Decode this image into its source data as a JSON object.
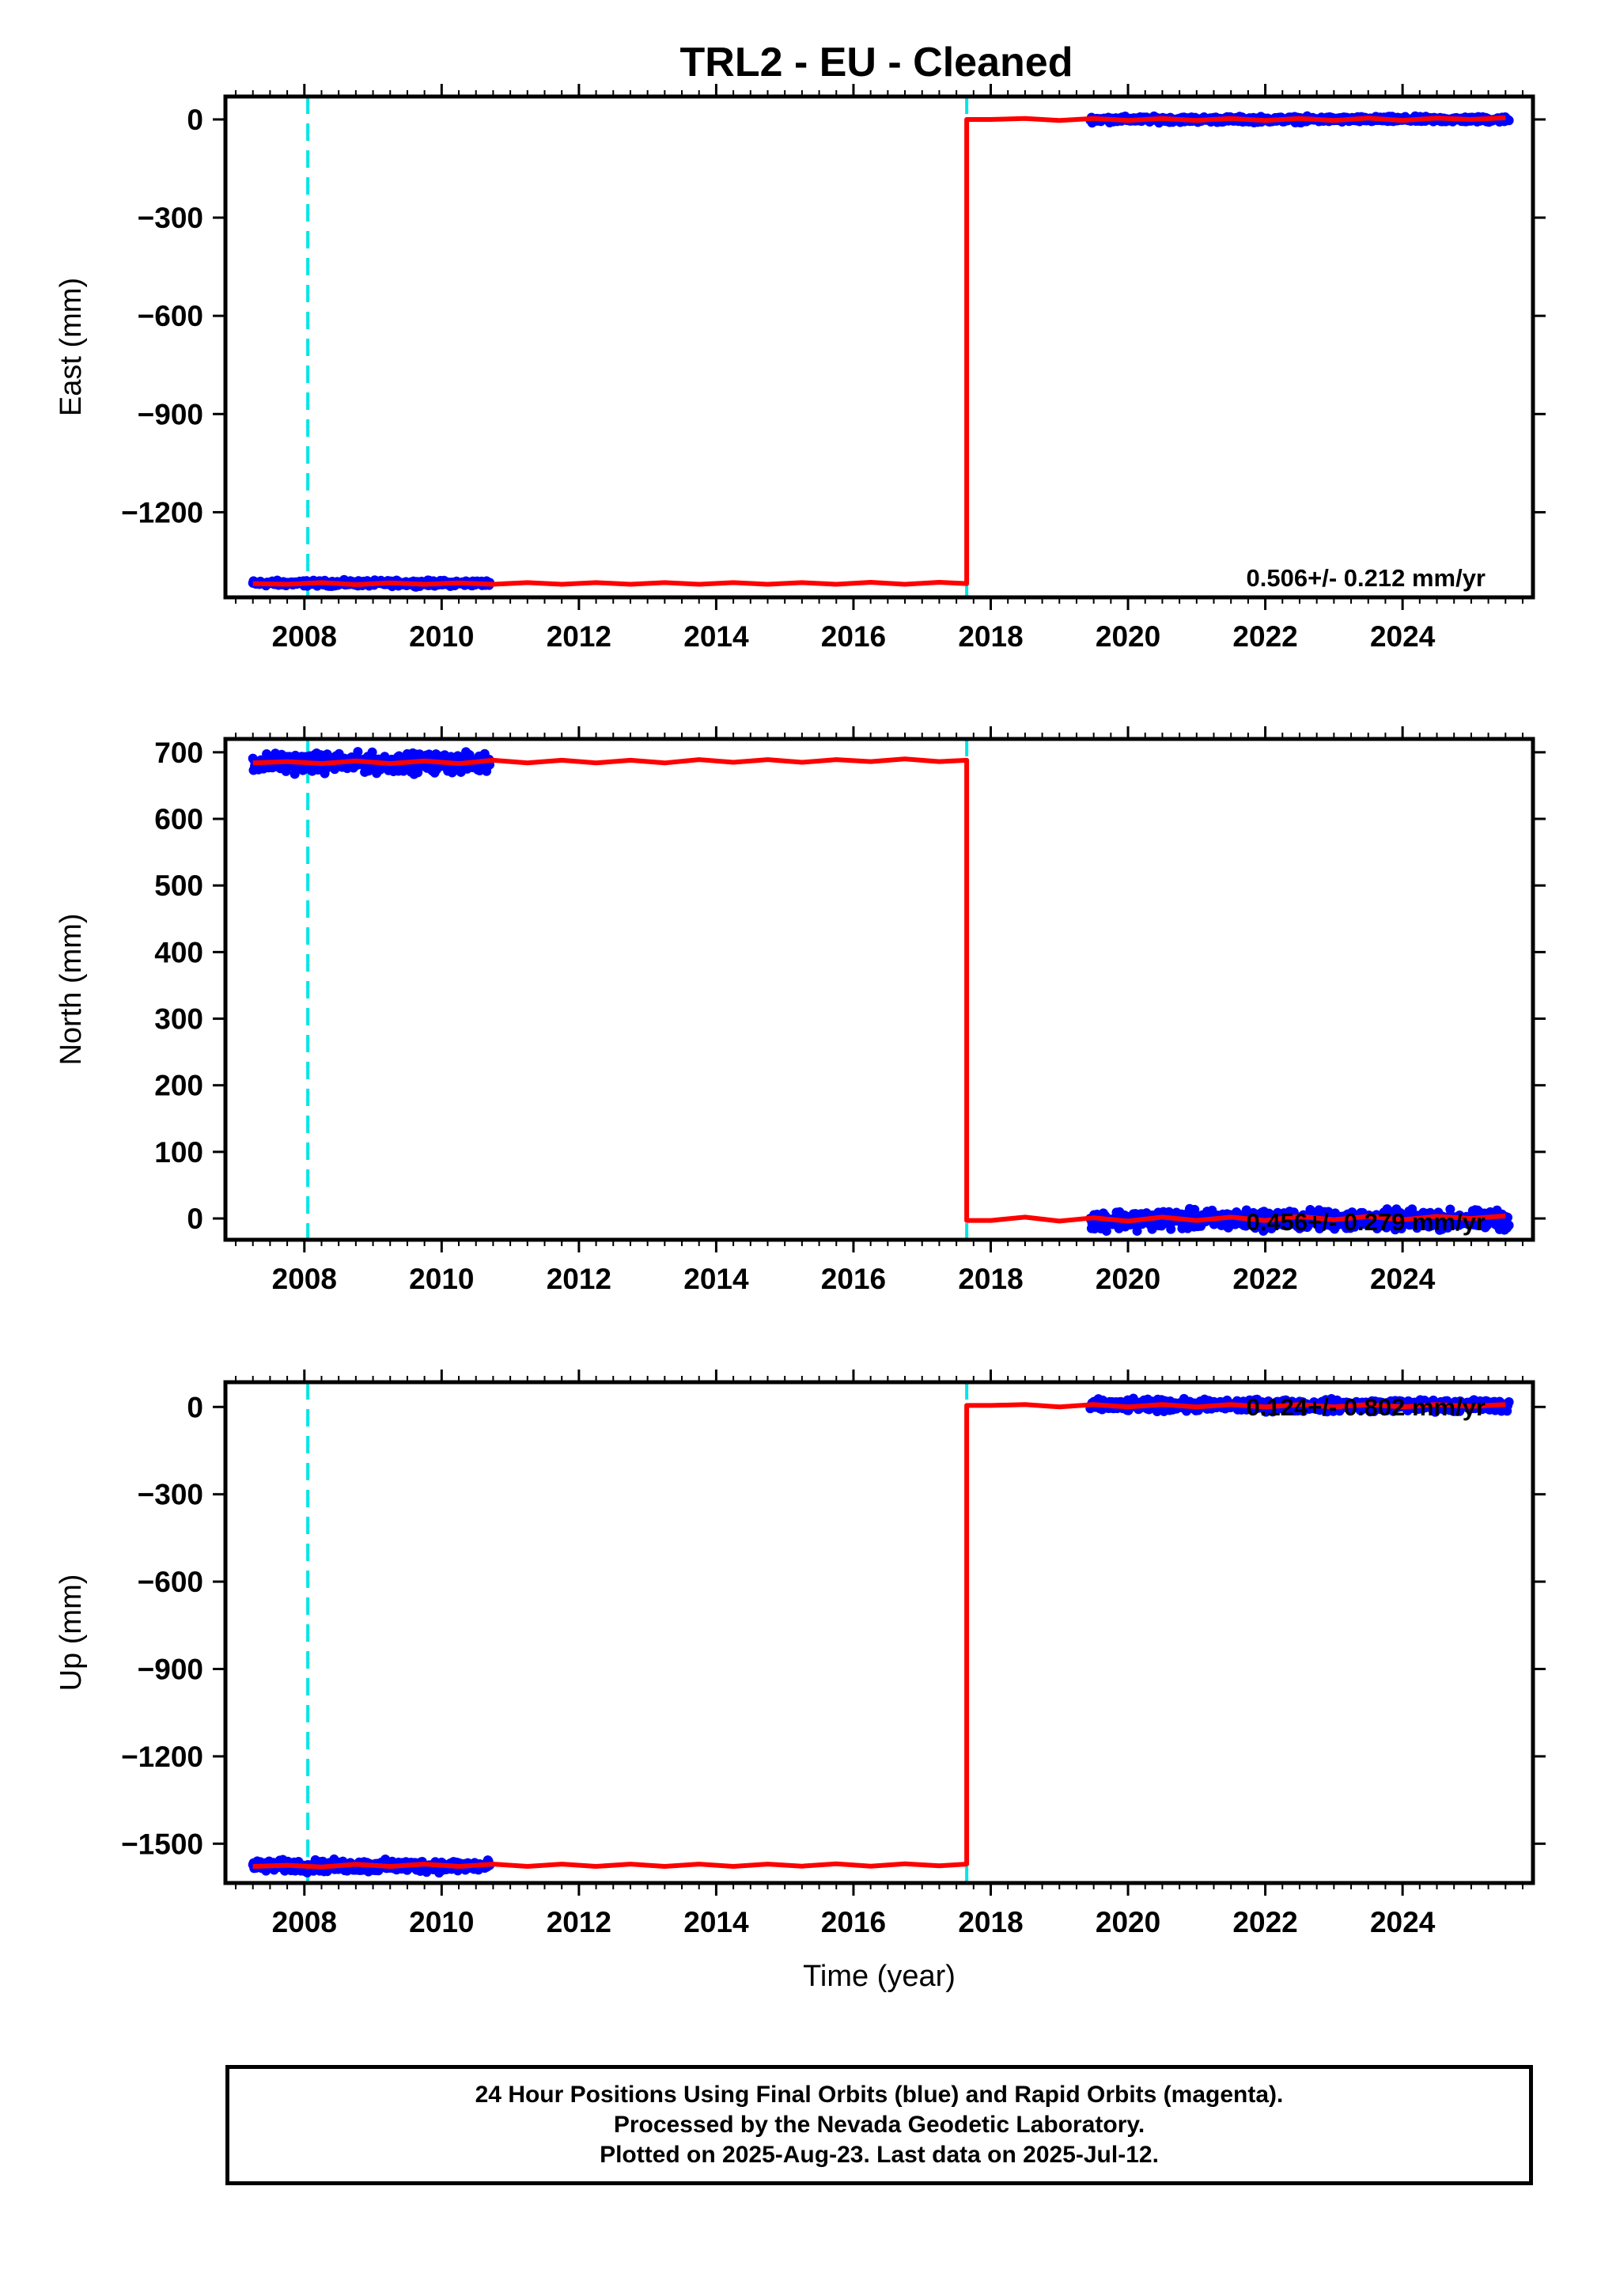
{
  "chart_data": [
    {
      "type": "line",
      "title": "TRL2  - EU - Cleaned",
      "ylabel": "East (mm)",
      "xlabel": "",
      "xlim": [
        2006.85,
        2025.9
      ],
      "ylim": [
        -1460,
        70
      ],
      "xticks": [
        "2008",
        "2010",
        "2012",
        "2014",
        "2016",
        "2018",
        "2020",
        "2022",
        "2024"
      ],
      "yticks": [
        "0",
        "−300",
        "−600",
        "−900",
        "−1200"
      ],
      "ytick_values": [
        0,
        -300,
        -600,
        -900,
        -1200
      ],
      "annotation": "0.506+/- 0.212 mm/yr",
      "vertical_lines": [
        2008.05,
        2017.65
      ],
      "series": [
        {
          "name": "Final Orbits (blue)",
          "kind": "points",
          "segments": [
            {
              "x_start": 2007.25,
              "x_end": 2010.7,
              "level": -1417,
              "noise": 6
            },
            {
              "x_start": 2019.45,
              "x_end": 2025.55,
              "level": 0,
              "noise": 6
            }
          ]
        },
        {
          "name": "model",
          "kind": "line",
          "x": [
            2007.25,
            2007.75,
            2008.25,
            2008.75,
            2009.25,
            2009.75,
            2010.25,
            2010.75,
            2011.25,
            2011.75,
            2012.25,
            2012.75,
            2013.25,
            2013.75,
            2014.25,
            2014.75,
            2015.25,
            2015.75,
            2016.25,
            2016.75,
            2017.25,
            2017.65,
            2017.65,
            2018.0,
            2018.5,
            2019.0,
            2019.5,
            2020.0,
            2020.5,
            2021.0,
            2021.5,
            2022.0,
            2022.5,
            2023.0,
            2023.5,
            2024.0,
            2024.5,
            2025.0,
            2025.5
          ],
          "y": [
            -1418,
            -1420,
            -1415,
            -1421,
            -1416,
            -1420,
            -1416,
            -1420,
            -1415,
            -1420,
            -1415,
            -1420,
            -1415,
            -1420,
            -1415,
            -1420,
            -1415,
            -1420,
            -1414,
            -1420,
            -1414,
            -1418,
            0,
            0,
            3,
            -3,
            3,
            -3,
            3,
            -3,
            3,
            -3,
            3,
            -3,
            4,
            -3,
            4,
            0,
            5
          ]
        }
      ]
    },
    {
      "type": "line",
      "title": "",
      "ylabel": "North (mm)",
      "xlabel": "",
      "xlim": [
        2006.85,
        2025.9
      ],
      "ylim": [
        -32,
        720
      ],
      "xticks": [
        "2008",
        "2010",
        "2012",
        "2014",
        "2016",
        "2018",
        "2020",
        "2022",
        "2024"
      ],
      "yticks": [
        "700",
        "600",
        "500",
        "400",
        "300",
        "200",
        "100",
        "0"
      ],
      "ytick_values": [
        700,
        600,
        500,
        400,
        300,
        200,
        100,
        0
      ],
      "annotation": "0.456+/- 0.279 mm/yr",
      "vertical_lines": [
        2008.05,
        2017.65
      ],
      "series": [
        {
          "name": "Final Orbits (blue)",
          "kind": "points",
          "segments": [
            {
              "x_start": 2007.25,
              "x_end": 2010.7,
              "level": 684,
              "noise": 10
            },
            {
              "x_start": 2019.45,
              "x_end": 2025.55,
              "level": -2,
              "noise": 10
            }
          ]
        },
        {
          "name": "model",
          "kind": "line",
          "x": [
            2007.25,
            2007.75,
            2008.25,
            2008.75,
            2009.25,
            2009.75,
            2010.25,
            2010.75,
            2011.25,
            2011.75,
            2012.25,
            2012.75,
            2013.25,
            2013.75,
            2014.25,
            2014.75,
            2015.25,
            2015.75,
            2016.25,
            2016.75,
            2017.25,
            2017.65,
            2017.65,
            2018.0,
            2018.5,
            2019.0,
            2019.5,
            2020.0,
            2020.5,
            2021.0,
            2021.5,
            2022.0,
            2022.5,
            2023.0,
            2023.5,
            2024.0,
            2024.5,
            2025.0,
            2025.5
          ],
          "y": [
            684,
            686,
            683,
            687,
            683,
            687,
            683,
            688,
            684,
            688,
            684,
            688,
            684,
            689,
            685,
            689,
            685,
            689,
            686,
            690,
            686,
            688,
            -3,
            -3,
            2,
            -4,
            1,
            -4,
            2,
            -3,
            2,
            -3,
            3,
            -2,
            3,
            -2,
            3,
            0,
            4
          ]
        }
      ]
    },
    {
      "type": "line",
      "title": "",
      "ylabel": "Up (mm)",
      "xlabel": "Time (year)",
      "xlim": [
        2006.85,
        2025.9
      ],
      "ylim": [
        -1635,
        85
      ],
      "xticks": [
        "2008",
        "2010",
        "2012",
        "2014",
        "2016",
        "2018",
        "2020",
        "2022",
        "2024"
      ],
      "yticks": [
        "0",
        "−300",
        "−600",
        "−900",
        "−1200",
        "−1500"
      ],
      "ytick_values": [
        0,
        -300,
        -600,
        -900,
        -1200,
        -1500
      ],
      "annotation": "0.124+/- 0.802 mm/yr",
      "vertical_lines": [
        2008.05,
        2017.65
      ],
      "series": [
        {
          "name": "Final Orbits (blue)",
          "kind": "points",
          "segments": [
            {
              "x_start": 2007.25,
              "x_end": 2010.7,
              "level": -1577,
              "noise": 14
            },
            {
              "x_start": 2019.45,
              "x_end": 2025.55,
              "level": 5,
              "noise": 14
            }
          ]
        },
        {
          "name": "model",
          "kind": "line",
          "x": [
            2007.25,
            2007.75,
            2008.25,
            2008.75,
            2009.25,
            2009.75,
            2010.25,
            2010.75,
            2011.25,
            2011.75,
            2012.25,
            2012.75,
            2013.25,
            2013.75,
            2014.25,
            2014.75,
            2015.25,
            2015.75,
            2016.25,
            2016.75,
            2017.25,
            2017.65,
            2017.65,
            2018.0,
            2018.5,
            2019.0,
            2019.5,
            2020.0,
            2020.5,
            2021.0,
            2021.5,
            2022.0,
            2022.5,
            2023.0,
            2023.5,
            2024.0,
            2024.5,
            2025.0,
            2025.5
          ],
          "y": [
            -1578,
            -1574,
            -1580,
            -1571,
            -1578,
            -1570,
            -1578,
            -1570,
            -1578,
            -1570,
            -1578,
            -1570,
            -1578,
            -1570,
            -1578,
            -1570,
            -1577,
            -1569,
            -1577,
            -1569,
            -1576,
            -1570,
            5,
            5,
            8,
            0,
            8,
            0,
            8,
            0,
            8,
            0,
            8,
            0,
            8,
            0,
            8,
            2,
            8
          ]
        }
      ]
    }
  ],
  "caption": {
    "line1": "24 Hour Positions Using Final Orbits (blue) and Rapid Orbits (magenta).",
    "line2": "Processed by the Nevada Geodetic Laboratory.",
    "line3": "Plotted on 2025-Aug-23. Last data on 2025-Jul-12."
  },
  "colors": {
    "points": "#0000ff",
    "model": "#ff0000",
    "offset_line": "#00e5e5",
    "frame": "#000000"
  }
}
